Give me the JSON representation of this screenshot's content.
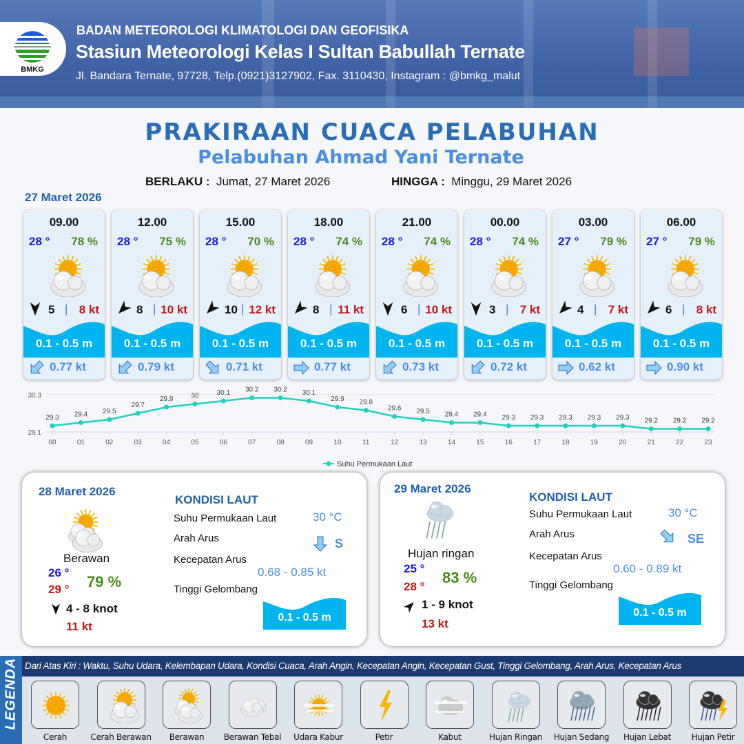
{
  "header": {
    "logo_text": "BMKG",
    "agency": "BADAN METEOROLOGI KLIMATOLOGI DAN GEOFISIKA",
    "station": "Stasiun Meteorologi Kelas I Sultan Babullah Ternate",
    "address": "Jl. Bandara Ternate, 97728, Telp.(0921)3127902, Fax. 3110430, Instagram : @bmkg_malut"
  },
  "title": "PRAKIRAAN CUACA PELABUHAN",
  "subtitle": "Pelabuhan Ahmad Yani Ternate",
  "validity": {
    "from_label": "BERLAKU :",
    "from": "Jumat, 27 Maret 2026",
    "to_label": "HINGGA :",
    "to": "Minggu, 29 Maret 2026"
  },
  "day1": {
    "date": "27 Maret 2026",
    "forecasts": [
      {
        "time": "09.00",
        "temp": "28 °",
        "hum": "78 %",
        "weather": "cerah-berawan",
        "wind_dir": "S",
        "wind": "5",
        "gust": "8 kt",
        "wave": "0.1 - 0.5 m",
        "current_dir": "SW",
        "current": "0.77 kt"
      },
      {
        "time": "12.00",
        "temp": "28 °",
        "hum": "75 %",
        "weather": "cerah-berawan",
        "wind_dir": "SW",
        "wind": "8",
        "gust": "10 kt",
        "wave": "0.1 - 0.5 m",
        "current_dir": "SW",
        "current": "0.79 kt"
      },
      {
        "time": "15.00",
        "temp": "28 °",
        "hum": "70 %",
        "weather": "cerah-berawan",
        "wind_dir": "SW",
        "wind": "10",
        "gust": "12 kt",
        "wave": "0.1 - 0.5 m",
        "current_dir": "SE",
        "current": "0.71 kt"
      },
      {
        "time": "18.00",
        "temp": "28 °",
        "hum": "74 %",
        "weather": "cerah-berawan",
        "wind_dir": "SW",
        "wind": "8",
        "gust": "11 kt",
        "wave": "0.1 - 0.5 m",
        "current_dir": "E",
        "current": "0.77 kt"
      },
      {
        "time": "21.00",
        "temp": "28 °",
        "hum": "74 %",
        "weather": "cerah-berawan",
        "wind_dir": "S",
        "wind": "6",
        "gust": "10 kt",
        "wave": "0.1 - 0.5 m",
        "current_dir": "SW",
        "current": "0.73 kt"
      },
      {
        "time": "00.00",
        "temp": "28 °",
        "hum": "74 %",
        "weather": "cerah-berawan",
        "wind_dir": "S",
        "wind": "3",
        "gust": "7 kt",
        "wave": "0.1 - 0.5 m",
        "current_dir": "SW",
        "current": "0.72 kt"
      },
      {
        "time": "03.00",
        "temp": "27 °",
        "hum": "79 %",
        "weather": "cerah-berawan",
        "wind_dir": "SW",
        "wind": "4",
        "gust": "7 kt",
        "wave": "0.1 - 0.5 m",
        "current_dir": "E",
        "current": "0.62 kt"
      },
      {
        "time": "06.00",
        "temp": "27 °",
        "hum": "79 %",
        "weather": "cerah-berawan",
        "wind_dir": "SW",
        "wind": "6",
        "gust": "8 kt",
        "wave": "0.1 - 0.5 m",
        "current_dir": "E",
        "current": "0.90 kt"
      }
    ]
  },
  "chart_data": {
    "type": "line",
    "x": [
      "00",
      "01",
      "02",
      "03",
      "04",
      "05",
      "06",
      "07",
      "08",
      "09",
      "10",
      "11",
      "12",
      "13",
      "14",
      "15",
      "16",
      "17",
      "18",
      "19",
      "20",
      "21",
      "22",
      "23"
    ],
    "series": [
      {
        "name": "Suhu Permukaan Laut",
        "values": [
          29.3,
          29.4,
          29.5,
          29.7,
          29.9,
          30.0,
          30.1,
          30.2,
          30.2,
          30.1,
          29.9,
          29.8,
          29.6,
          29.5,
          29.4,
          29.4,
          29.3,
          29.3,
          29.3,
          29.3,
          29.3,
          29.2,
          29.2,
          29.2
        ],
        "color": "#20d0c0"
      }
    ],
    "ylim": [
      29.1,
      30.3
    ],
    "yticks": [
      "30.3",
      "29.1"
    ],
    "legend": "bottom",
    "grid": true
  },
  "days": [
    {
      "date": "28 Maret 2026",
      "weather": "berawan",
      "weather_label": "Berawan",
      "tmin": "26 °",
      "tmax": "29 °",
      "hum": "79 %",
      "wind_dir": "S",
      "wind": "4  - 8 knot",
      "gust": "11 kt",
      "sea": {
        "title": "KONDISI LAUT",
        "sst_label": "Suhu Permukaan Laut",
        "sst": "30 °C",
        "dir_label": "Arah Arus",
        "dir": "S",
        "speed_label": "Kecepatan Arus",
        "speed": "0.68  - 0.85 kt",
        "wave_label": "Tinggi Gelombang",
        "wave": "0.1 - 0.5 m"
      }
    },
    {
      "date": "29 Maret 2026",
      "weather": "hujan-ringan",
      "weather_label": "Hujan ringan",
      "tmin": "25 °",
      "tmax": "28 °",
      "hum": "83 %",
      "wind_dir": "NE",
      "wind": "1  - 9 knot",
      "gust": "13 kt",
      "sea": {
        "title": "KONDISI LAUT",
        "sst_label": "Suhu Permukaan Laut",
        "sst": "30 °C",
        "dir_label": "Arah Arus",
        "dir": "SE",
        "speed_label": "Kecepatan Arus",
        "speed": "0.60  - 0.89 kt",
        "wave_label": "Tinggi Gelombang",
        "wave": "0.1 - 0.5 m"
      }
    }
  ],
  "legend": {
    "title": "LEGENDA",
    "description": "Dari Atas Kiri : Waktu, Suhu Udara, Kelembapan Udara, Kondisi Cuaca, Arah Angin, Kecepatan Angin, Kecepatan Gust, Tinggi Gelombang, Arah Arus, Kecepatan Arus",
    "items": [
      {
        "label": "Cerah",
        "icon": "cerah"
      },
      {
        "label": "Cerah Berawan",
        "icon": "cerah-berawan"
      },
      {
        "label": "Berawan",
        "icon": "berawan"
      },
      {
        "label": "Berawan Tebal",
        "icon": "berawan-tebal"
      },
      {
        "label": "Udara Kabur",
        "icon": "udara-kabur"
      },
      {
        "label": "Petir",
        "icon": "petir"
      },
      {
        "label": "Kabut",
        "icon": "kabut"
      },
      {
        "label": "Hujan Ringan",
        "icon": "hujan-ringan"
      },
      {
        "label": "Hujan Sedang",
        "icon": "hujan-sedang"
      },
      {
        "label": "Hujan Lebat",
        "icon": "hujan-lebat"
      },
      {
        "label": "Hujan Petir",
        "icon": "hujan-petir"
      }
    ]
  },
  "colors": {
    "brand": "#2a6db5",
    "wave": "#00b4f0",
    "sst_line": "#20d0c0",
    "temp": "#1515f0",
    "temp_max": "#c01818",
    "humidity": "#4a8a1e",
    "gust": "#c01818",
    "current": "#4a8ee0"
  }
}
